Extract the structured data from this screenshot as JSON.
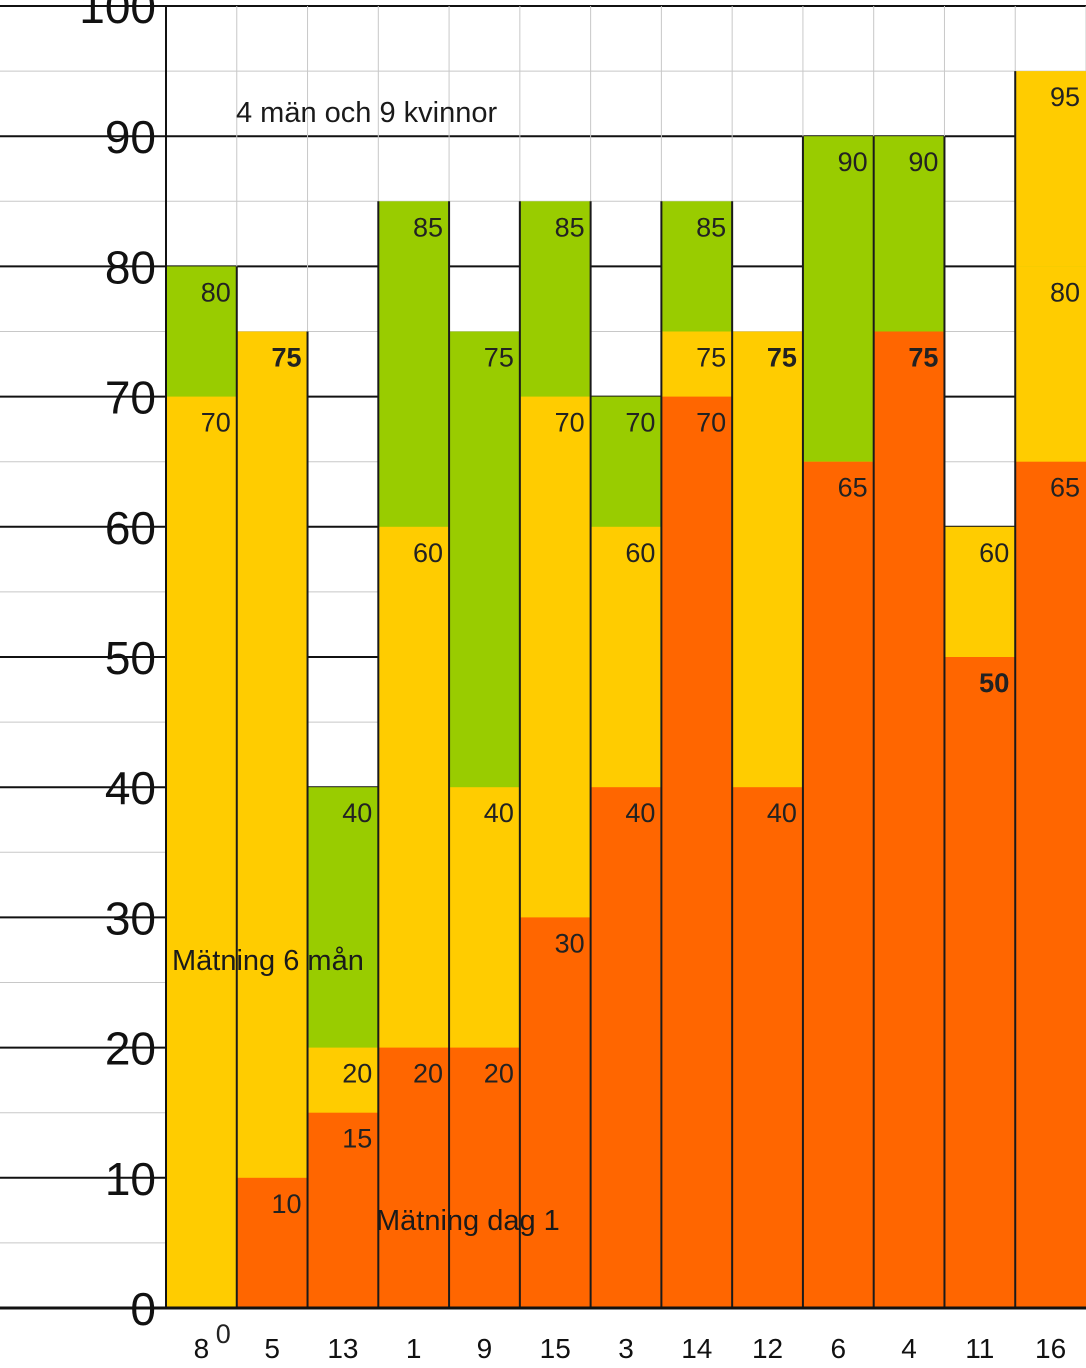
{
  "chart_data": {
    "type": "bar",
    "categories": [
      "8",
      "5",
      "13",
      "1",
      "9",
      "15",
      "3",
      "14",
      "12",
      "6",
      "4",
      "11",
      "16"
    ],
    "ylim": [
      0,
      100
    ],
    "yticks": [
      0,
      10,
      20,
      30,
      40,
      50,
      60,
      70,
      80,
      90,
      100
    ],
    "grid": true,
    "series": [
      {
        "color": "#ff6600",
        "values": [
          0,
          10,
          15,
          20,
          20,
          30,
          40,
          70,
          40,
          65,
          75,
          50,
          65
        ],
        "labels": [
          "0",
          "10",
          "15",
          "20",
          "20",
          "30",
          "40",
          "70",
          "40",
          "65",
          "75",
          "50",
          "65"
        ],
        "bold": [
          false,
          false,
          false,
          false,
          false,
          false,
          false,
          false,
          false,
          false,
          true,
          true,
          false
        ]
      },
      {
        "color": "#ffcc00",
        "values": [
          70,
          75,
          20,
          60,
          40,
          70,
          60,
          75,
          75,
          65,
          75,
          60,
          80
        ],
        "labels": [
          "70",
          "75",
          "20",
          "60",
          "40",
          "70",
          "60",
          "75",
          "75",
          "",
          "75",
          "60",
          ""
        ],
        "bold": [
          false,
          true,
          false,
          false,
          false,
          false,
          false,
          false,
          true,
          false,
          false,
          false,
          false
        ]
      },
      {
        "color": "#99cc00",
        "values": [
          80,
          75,
          40,
          85,
          75,
          85,
          70,
          85,
          75,
          90,
          90,
          50,
          80
        ],
        "labels": [
          "80",
          "75",
          "40",
          "85",
          "75",
          "85",
          "70",
          "85",
          "75",
          "90",
          "90",
          "50",
          "80"
        ],
        "bold": [
          false,
          false,
          false,
          false,
          false,
          false,
          false,
          false,
          false,
          false,
          false,
          false,
          false
        ]
      },
      {
        "color": "#ffcc00",
        "values": [
          0,
          0,
          0,
          0,
          0,
          0,
          0,
          0,
          0,
          0,
          0,
          0,
          95
        ],
        "labels": [
          "",
          "",
          "",
          "",
          "",
          "",
          "",
          "",
          "",
          "",
          "",
          "",
          "95"
        ],
        "bold": [
          false,
          false,
          false,
          false,
          false,
          false,
          false,
          false,
          false,
          false,
          false,
          false,
          false
        ]
      }
    ],
    "annotations": [
      "4 män och 9 kvinnor",
      "Mätning 6 mån",
      "Mätning dag 1"
    ]
  }
}
